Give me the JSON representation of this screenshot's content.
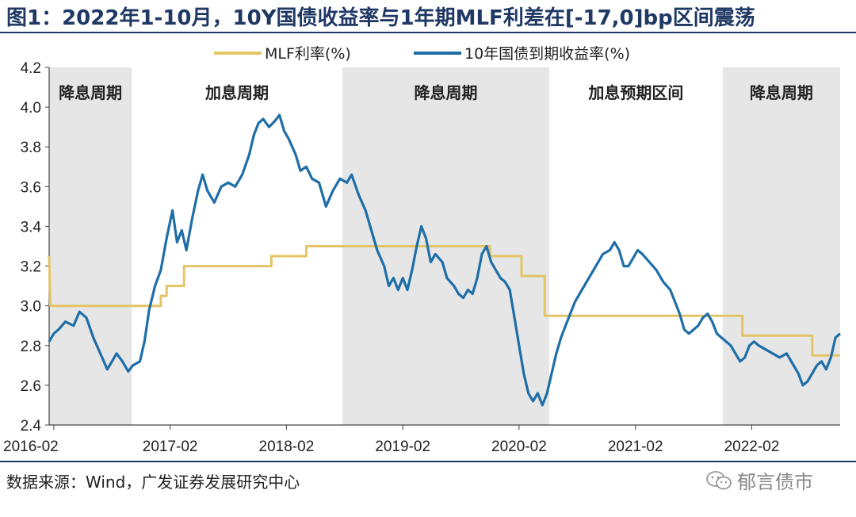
{
  "header": {
    "title": "图1：2022年1-10月，10Y国债收益率与1年期MLF利差在[-17,0]bp区间震荡"
  },
  "footer": {
    "source": "数据来源：Wind，广发证券发展研究中心",
    "watermark": "郁言债市"
  },
  "colors": {
    "mlf": "#e3c466",
    "bond": "#1f6ea8",
    "shade": "#e6e6e6",
    "accent": "#1f3864"
  },
  "chart_data": {
    "type": "line",
    "title": "2022年1-10月，10Y国债收益率与1年期MLF利差在[-17,0]bp区间震荡",
    "xlabel": "",
    "ylabel": "",
    "ylim": [
      2.4,
      4.2
    ],
    "yticks": [
      "2.4",
      "2.6",
      "2.8",
      "3.0",
      "3.2",
      "3.4",
      "3.6",
      "3.8",
      "4.0",
      "4.2"
    ],
    "xlim": [
      2016.04,
      2022.84
    ],
    "xticks": [
      {
        "label": "2016-02",
        "t": 2016.08
      },
      {
        "label": "2017-02",
        "t": 2017.08
      },
      {
        "label": "2018-02",
        "t": 2018.08
      },
      {
        "label": "2019-02",
        "t": 2019.08
      },
      {
        "label": "2020-02",
        "t": 2020.08
      },
      {
        "label": "2021-02",
        "t": 2021.08
      },
      {
        "label": "2022-02",
        "t": 2022.08
      }
    ],
    "grid": false,
    "legend": "top-center",
    "periods": [
      {
        "label": "降息周期",
        "start": 2016.04,
        "end": 2016.75,
        "shaded": true
      },
      {
        "label": "加息周期",
        "start": 2016.75,
        "end": 2018.56,
        "shaded": false
      },
      {
        "label": "降息周期",
        "start": 2018.56,
        "end": 2020.34,
        "shaded": true
      },
      {
        "label": "加息预期区间",
        "start": 2020.34,
        "end": 2021.83,
        "shaded": false
      },
      {
        "label": "降息周期",
        "start": 2021.83,
        "end": 2022.84,
        "shaded": true
      }
    ],
    "series": [
      {
        "name": "MLF利率(%)",
        "step": true,
        "points": [
          [
            2016.04,
            3.25
          ],
          [
            2016.05,
            3.0
          ],
          [
            2017.0,
            3.0
          ],
          [
            2017.0,
            3.05
          ],
          [
            2017.05,
            3.05
          ],
          [
            2017.05,
            3.1
          ],
          [
            2017.2,
            3.1
          ],
          [
            2017.2,
            3.2
          ],
          [
            2017.95,
            3.2
          ],
          [
            2017.95,
            3.25
          ],
          [
            2018.25,
            3.25
          ],
          [
            2018.25,
            3.3
          ],
          [
            2019.83,
            3.3
          ],
          [
            2019.83,
            3.25
          ],
          [
            2020.1,
            3.25
          ],
          [
            2020.1,
            3.15
          ],
          [
            2020.3,
            3.15
          ],
          [
            2020.3,
            2.95
          ],
          [
            2022.0,
            2.95
          ],
          [
            2022.0,
            2.85
          ],
          [
            2022.6,
            2.85
          ],
          [
            2022.6,
            2.75
          ],
          [
            2022.84,
            2.75
          ]
        ]
      },
      {
        "name": "10年国债到期收益率(%)",
        "step": false,
        "points": [
          [
            2016.04,
            2.82
          ],
          [
            2016.08,
            2.86
          ],
          [
            2016.12,
            2.88
          ],
          [
            2016.18,
            2.92
          ],
          [
            2016.25,
            2.9
          ],
          [
            2016.3,
            2.97
          ],
          [
            2016.36,
            2.94
          ],
          [
            2016.42,
            2.84
          ],
          [
            2016.48,
            2.76
          ],
          [
            2016.54,
            2.68
          ],
          [
            2016.58,
            2.72
          ],
          [
            2016.62,
            2.76
          ],
          [
            2016.67,
            2.72
          ],
          [
            2016.72,
            2.67
          ],
          [
            2016.76,
            2.7
          ],
          [
            2016.82,
            2.72
          ],
          [
            2016.86,
            2.82
          ],
          [
            2016.9,
            2.98
          ],
          [
            2016.95,
            3.1
          ],
          [
            2017.0,
            3.18
          ],
          [
            2017.05,
            3.34
          ],
          [
            2017.1,
            3.48
          ],
          [
            2017.14,
            3.32
          ],
          [
            2017.18,
            3.38
          ],
          [
            2017.22,
            3.28
          ],
          [
            2017.27,
            3.44
          ],
          [
            2017.32,
            3.58
          ],
          [
            2017.36,
            3.66
          ],
          [
            2017.4,
            3.58
          ],
          [
            2017.46,
            3.52
          ],
          [
            2017.52,
            3.6
          ],
          [
            2017.58,
            3.62
          ],
          [
            2017.64,
            3.6
          ],
          [
            2017.7,
            3.66
          ],
          [
            2017.76,
            3.76
          ],
          [
            2017.8,
            3.86
          ],
          [
            2017.84,
            3.92
          ],
          [
            2017.88,
            3.94
          ],
          [
            2017.93,
            3.9
          ],
          [
            2017.98,
            3.93
          ],
          [
            2018.02,
            3.96
          ],
          [
            2018.06,
            3.88
          ],
          [
            2018.1,
            3.84
          ],
          [
            2018.16,
            3.76
          ],
          [
            2018.2,
            3.68
          ],
          [
            2018.25,
            3.7
          ],
          [
            2018.3,
            3.64
          ],
          [
            2018.36,
            3.62
          ],
          [
            2018.42,
            3.5
          ],
          [
            2018.48,
            3.58
          ],
          [
            2018.54,
            3.64
          ],
          [
            2018.6,
            3.62
          ],
          [
            2018.64,
            3.66
          ],
          [
            2018.7,
            3.56
          ],
          [
            2018.76,
            3.48
          ],
          [
            2018.82,
            3.36
          ],
          [
            2018.86,
            3.28
          ],
          [
            2018.92,
            3.2
          ],
          [
            2018.96,
            3.1
          ],
          [
            2019.0,
            3.14
          ],
          [
            2019.04,
            3.08
          ],
          [
            2019.08,
            3.14
          ],
          [
            2019.12,
            3.08
          ],
          [
            2019.16,
            3.18
          ],
          [
            2019.2,
            3.3
          ],
          [
            2019.24,
            3.4
          ],
          [
            2019.28,
            3.34
          ],
          [
            2019.32,
            3.22
          ],
          [
            2019.36,
            3.26
          ],
          [
            2019.42,
            3.22
          ],
          [
            2019.46,
            3.14
          ],
          [
            2019.52,
            3.1
          ],
          [
            2019.56,
            3.06
          ],
          [
            2019.6,
            3.04
          ],
          [
            2019.64,
            3.08
          ],
          [
            2019.68,
            3.06
          ],
          [
            2019.72,
            3.14
          ],
          [
            2019.76,
            3.26
          ],
          [
            2019.8,
            3.3
          ],
          [
            2019.84,
            3.22
          ],
          [
            2019.88,
            3.18
          ],
          [
            2019.92,
            3.14
          ],
          [
            2019.96,
            3.12
          ],
          [
            2020.0,
            3.08
          ],
          [
            2020.04,
            2.94
          ],
          [
            2020.08,
            2.8
          ],
          [
            2020.12,
            2.66
          ],
          [
            2020.16,
            2.56
          ],
          [
            2020.2,
            2.52
          ],
          [
            2020.24,
            2.56
          ],
          [
            2020.28,
            2.5
          ],
          [
            2020.32,
            2.56
          ],
          [
            2020.36,
            2.66
          ],
          [
            2020.4,
            2.76
          ],
          [
            2020.44,
            2.84
          ],
          [
            2020.48,
            2.9
          ],
          [
            2020.52,
            2.96
          ],
          [
            2020.56,
            3.02
          ],
          [
            2020.62,
            3.08
          ],
          [
            2020.68,
            3.14
          ],
          [
            2020.74,
            3.2
          ],
          [
            2020.8,
            3.26
          ],
          [
            2020.86,
            3.28
          ],
          [
            2020.9,
            3.32
          ],
          [
            2020.94,
            3.28
          ],
          [
            2020.98,
            3.2
          ],
          [
            2021.02,
            3.2
          ],
          [
            2021.06,
            3.24
          ],
          [
            2021.1,
            3.28
          ],
          [
            2021.14,
            3.26
          ],
          [
            2021.2,
            3.22
          ],
          [
            2021.26,
            3.18
          ],
          [
            2021.32,
            3.12
          ],
          [
            2021.38,
            3.08
          ],
          [
            2021.42,
            3.02
          ],
          [
            2021.46,
            2.96
          ],
          [
            2021.5,
            2.88
          ],
          [
            2021.54,
            2.86
          ],
          [
            2021.58,
            2.88
          ],
          [
            2021.62,
            2.9
          ],
          [
            2021.66,
            2.94
          ],
          [
            2021.7,
            2.96
          ],
          [
            2021.74,
            2.92
          ],
          [
            2021.78,
            2.86
          ],
          [
            2021.82,
            2.84
          ],
          [
            2021.86,
            2.82
          ],
          [
            2021.9,
            2.8
          ],
          [
            2021.94,
            2.76
          ],
          [
            2021.98,
            2.72
          ],
          [
            2022.02,
            2.74
          ],
          [
            2022.06,
            2.8
          ],
          [
            2022.1,
            2.82
          ],
          [
            2022.14,
            2.8
          ],
          [
            2022.2,
            2.78
          ],
          [
            2022.26,
            2.76
          ],
          [
            2022.32,
            2.74
          ],
          [
            2022.38,
            2.76
          ],
          [
            2022.44,
            2.7
          ],
          [
            2022.48,
            2.66
          ],
          [
            2022.52,
            2.6
          ],
          [
            2022.56,
            2.62
          ],
          [
            2022.6,
            2.66
          ],
          [
            2022.64,
            2.7
          ],
          [
            2022.68,
            2.72
          ],
          [
            2022.72,
            2.68
          ],
          [
            2022.76,
            2.74
          ],
          [
            2022.8,
            2.84
          ],
          [
            2022.84,
            2.86
          ]
        ]
      }
    ]
  }
}
